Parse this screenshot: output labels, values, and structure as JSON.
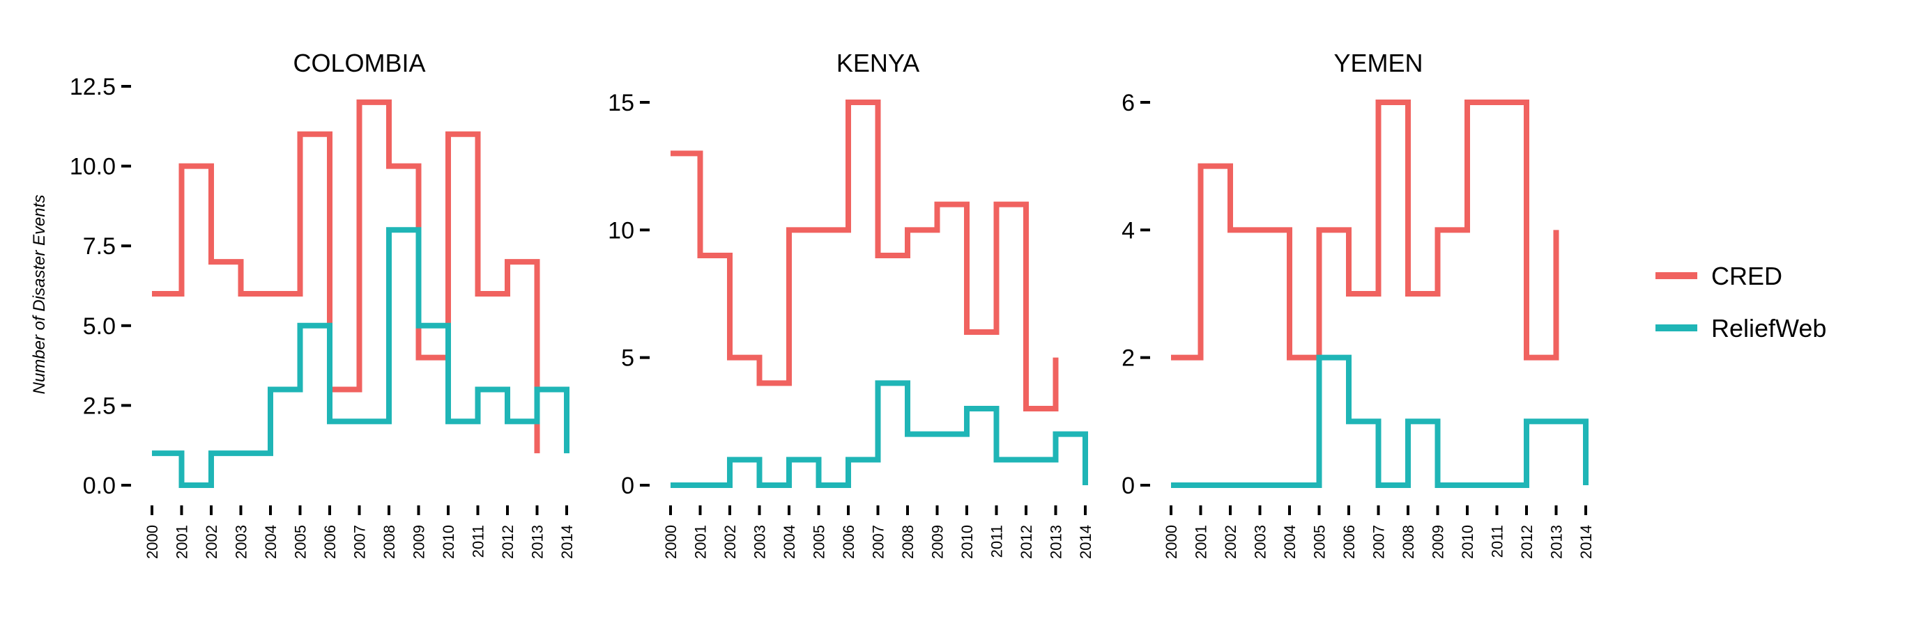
{
  "chart_data": {
    "type": "line",
    "ylabel": "Number of Disaster Events",
    "x": [
      "2000",
      "2001",
      "2002",
      "2003",
      "2004",
      "2005",
      "2006",
      "2007",
      "2008",
      "2009",
      "2010",
      "2011",
      "2012",
      "2013",
      "2014"
    ],
    "legend": {
      "position": "right",
      "entries": [
        {
          "name": "CRED",
          "color": "#F0625F"
        },
        {
          "name": "ReliefWeb",
          "color": "#1FB5B6"
        }
      ]
    },
    "panels": [
      {
        "title": "COLOMBIA",
        "ylim": [
          0,
          12.5
        ],
        "yticks": [
          "0.0",
          "2.5",
          "5.0",
          "7.5",
          "10.0",
          "12.5"
        ],
        "ytick_values": [
          0,
          2.5,
          5,
          7.5,
          10,
          12.5
        ],
        "series": [
          {
            "name": "CRED",
            "values": [
              6,
              10,
              7,
              6,
              6,
              11,
              3,
              12,
              10,
              4,
              11,
              6,
              7,
              1
            ]
          },
          {
            "name": "ReliefWeb",
            "values": [
              1,
              0,
              1,
              1,
              3,
              5,
              2,
              2,
              8,
              5,
              2,
              3,
              2,
              3,
              1
            ]
          }
        ]
      },
      {
        "title": "KENYA",
        "ylim": [
          0,
          15
        ],
        "yticks": [
          "0",
          "5",
          "10",
          "15"
        ],
        "ytick_values": [
          0,
          5,
          10,
          15
        ],
        "series": [
          {
            "name": "CRED",
            "values": [
              13,
              9,
              5,
              4,
              10,
              10,
              15,
              9,
              10,
              11,
              6,
              11,
              3,
              5
            ]
          },
          {
            "name": "ReliefWeb",
            "values": [
              0,
              0,
              1,
              0,
              1,
              0,
              1,
              4,
              2,
              2,
              3,
              1,
              1,
              2,
              0
            ]
          }
        ]
      },
      {
        "title": "YEMEN",
        "ylim": [
          0,
          6
        ],
        "yticks": [
          "0",
          "2",
          "4",
          "6"
        ],
        "ytick_values": [
          0,
          2,
          4,
          6
        ],
        "series": [
          {
            "name": "CRED",
            "values": [
              2,
              5,
              4,
              4,
              2,
              4,
              3,
              6,
              3,
              4,
              6,
              6,
              2,
              4
            ]
          },
          {
            "name": "ReliefWeb",
            "values": [
              0,
              0,
              0,
              0,
              0,
              2,
              1,
              0,
              1,
              0,
              0,
              0,
              1,
              1,
              0
            ]
          }
        ]
      }
    ]
  }
}
